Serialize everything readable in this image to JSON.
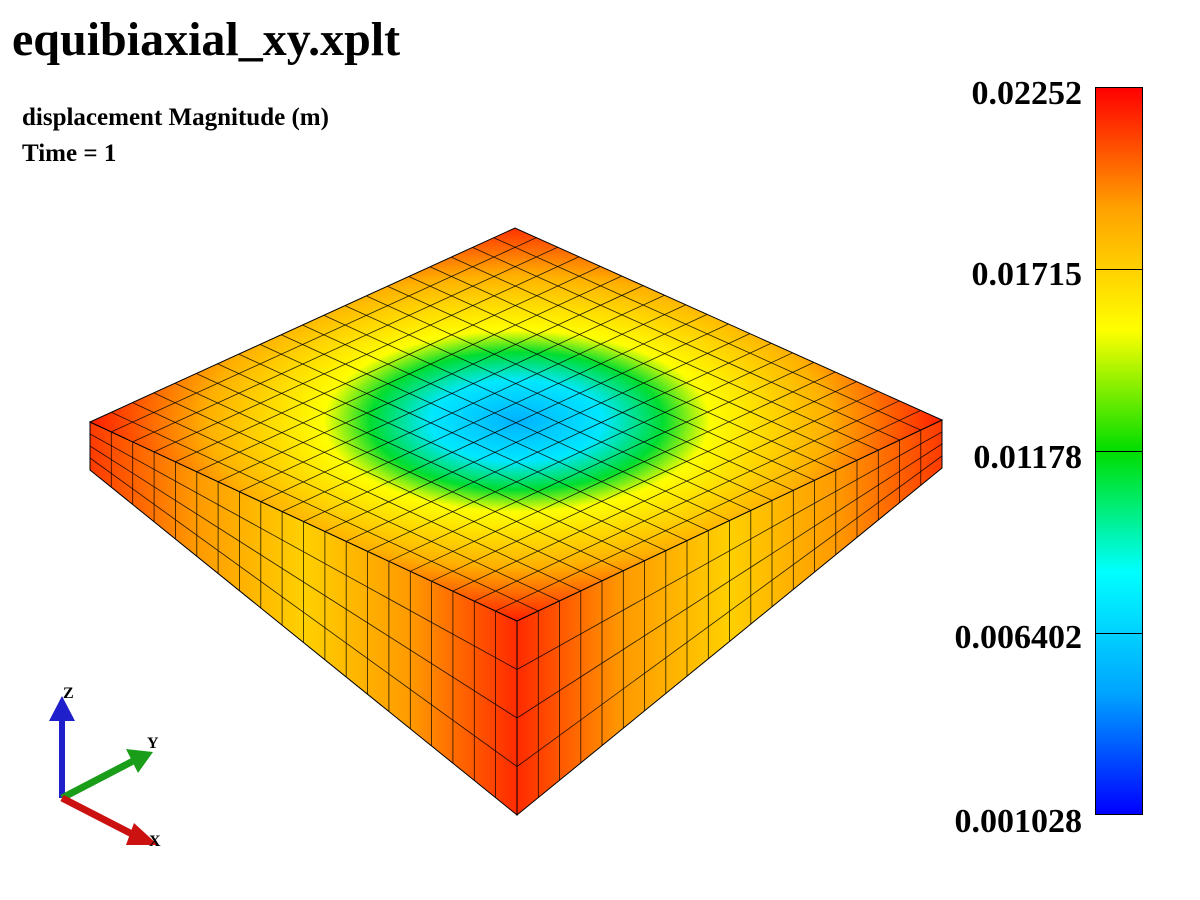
{
  "title": "equibiaxial_xy.xplt",
  "field_label": "displacement Magnitude (m)",
  "time_label": "Time = 1",
  "colorbar": {
    "max": 0.02252,
    "min": 0.001028,
    "tick_labels": [
      "0.02252",
      "0.01715",
      "0.01178",
      "0.006402",
      "0.001028"
    ],
    "stops": [
      "#0000ff",
      "#00a4ff",
      "#00ffff",
      "#00dd00",
      "#ffff00",
      "#ffa200",
      "#ff0000"
    ]
  },
  "mesh": {
    "divisions": 20,
    "layers": 4
  },
  "triad": {
    "x": "X",
    "y": "Y",
    "z": "Z",
    "x_color": "#cc1111",
    "y_color": "#1a9e1a",
    "z_color": "#1f1fcc"
  }
}
